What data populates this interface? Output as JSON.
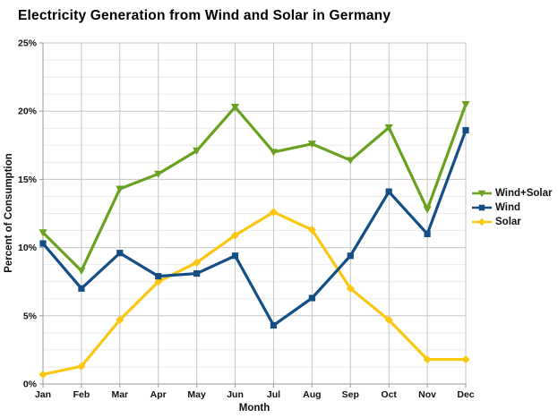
{
  "chart_data": {
    "type": "line",
    "title": "Electricity Generation from Wind and Solar in Germany",
    "xlabel": "Month",
    "ylabel": "Percent of Consumption",
    "categories": [
      "Jan",
      "Feb",
      "Mar",
      "Apr",
      "May",
      "Jun",
      "Jul",
      "Aug",
      "Sep",
      "Oct",
      "Nov",
      "Dec"
    ],
    "series": [
      {
        "name": "Wind+Solar",
        "color": "#6aa121",
        "marker": "triangle-down",
        "values": [
          11.1,
          8.3,
          14.3,
          15.4,
          17.1,
          20.3,
          17.0,
          17.6,
          16.4,
          18.8,
          12.8,
          20.5
        ]
      },
      {
        "name": "Wind",
        "color": "#134e85",
        "marker": "square",
        "values": [
          10.3,
          7.0,
          9.6,
          7.9,
          8.1,
          9.4,
          4.3,
          6.3,
          9.4,
          14.1,
          11.0,
          18.6
        ]
      },
      {
        "name": "Solar",
        "color": "#fac712",
        "marker": "diamond",
        "values": [
          0.7,
          1.3,
          4.7,
          7.5,
          8.9,
          10.9,
          12.6,
          11.3,
          7.0,
          4.7,
          1.8,
          1.8
        ]
      }
    ],
    "ylim": [
      0,
      25
    ],
    "ytick_step": 5,
    "ytick_minor_step": 1.25,
    "ytick_labels": [
      "0%",
      "5%",
      "10%",
      "15%",
      "20%",
      "25%"
    ],
    "grid": true,
    "legend_position": "right"
  }
}
